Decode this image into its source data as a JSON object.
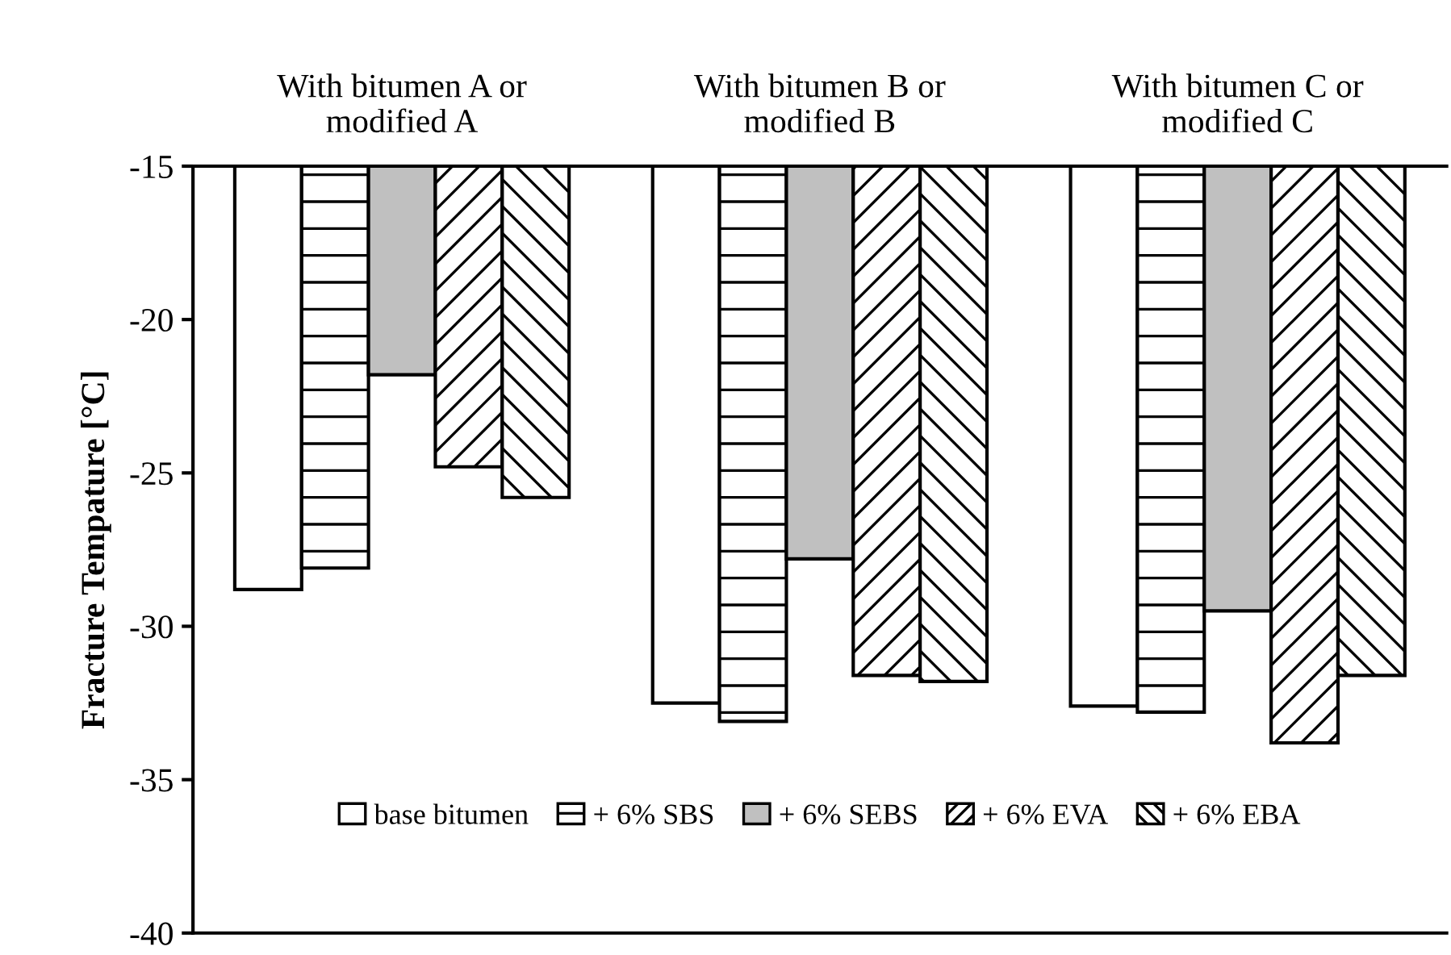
{
  "chart_data": {
    "type": "bar",
    "ylabel": "Fracture Tempature [°C]",
    "categories": [
      "With bitumen A or\nmodified A",
      "With bitumen B or\nmodified B",
      "With bitumen C or\nmodified C"
    ],
    "series": [
      {
        "name": "base bitumen",
        "color": "#ffffff",
        "values": [
          -28.8,
          -32.5,
          -32.6
        ]
      },
      {
        "name": "+ 6% SBS",
        "color": "#ffffff",
        "values": [
          -28.1,
          -33.1,
          -32.8
        ]
      },
      {
        "name": "+ 6% SEBS",
        "color": "#c0c0c0",
        "values": [
          -21.8,
          -27.8,
          -29.5
        ]
      },
      {
        "name": "+ 6% EVA",
        "color": "#ffffff",
        "values": [
          -24.8,
          -31.6,
          -33.8
        ]
      },
      {
        "name": "+ 6% EBA",
        "color": "#ffffff",
        "values": [
          -25.8,
          -31.8,
          -31.6
        ]
      }
    ],
    "ylim": [
      -40,
      -15
    ],
    "yticks": [
      -40,
      -35,
      -30,
      -25,
      -20,
      -15
    ],
    "grid": false,
    "legend": "bottom"
  }
}
